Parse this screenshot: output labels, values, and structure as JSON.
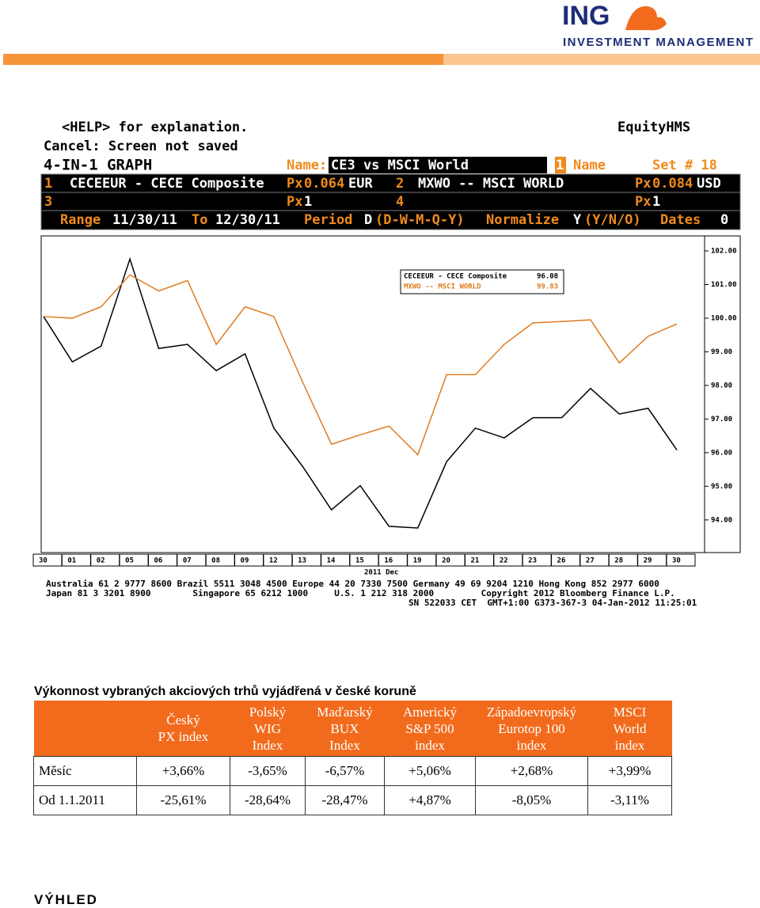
{
  "logo": {
    "name": "ING",
    "subtitle": "INVESTMENT MANAGEMENT"
  },
  "terminal": {
    "help": "<HELP> for explanation.",
    "product": "EquityHMS",
    "cancel": "Cancel: Screen not saved",
    "screen": "4-IN-1 GRAPH",
    "name_label": "Name:",
    "name_value": "CE3 vs MSCI World",
    "name_num": "1",
    "name_word": "Name",
    "set": "Set # 18",
    "row1": [
      "1",
      "CECEEUR - CECE Composite",
      "Px",
      "0.064",
      "EUR",
      "2",
      "MXWO -- MSCI WORLD",
      "Px",
      "0.084",
      "USD"
    ],
    "row2": [
      "3",
      "Px",
      "1",
      "4",
      "Px",
      "1"
    ],
    "row3": [
      "Range",
      "11/30/11",
      "To",
      "12/30/11",
      "Period",
      "D",
      "(D-W-M-Q-Y)",
      "Normalize",
      "Y",
      "(Y/N/O)",
      "Dates",
      "0"
    ],
    "footer": [
      "Australia 61 2 9777 8600 Brazil 5511 3048 4500 Europe 44 20 7330 7500 Germany 49 69 9204 1210 Hong Kong 852 2977 6000",
      "Japan 81 3 3201 8900        Singapore 65 6212 1000     U.S. 1 212 318 2000         Copyright 2012 Bloomberg Finance L.P.",
      "SN 522033 CET  GMT+1:00 G373-367-3 04-Jan-2012 11:25:01"
    ]
  },
  "chart_data": {
    "type": "line",
    "x_label": "2011 Dec",
    "categories": [
      "30",
      "01",
      "02",
      "05",
      "06",
      "07",
      "08",
      "09",
      "12",
      "13",
      "14",
      "15",
      "16",
      "19",
      "20",
      "21",
      "22",
      "23",
      "26",
      "27",
      "28",
      "29",
      "30"
    ],
    "series": [
      {
        "name": "CECEEUR - CECE Composite",
        "color": "#000000",
        "values": [
          100.05,
          98.7,
          99.17,
          101.76,
          99.1,
          99.22,
          98.44,
          98.94,
          96.73,
          95.59,
          94.3,
          95.02,
          93.81,
          93.76,
          95.73,
          96.73,
          96.44,
          97.04,
          97.04,
          97.91,
          97.15,
          97.32,
          96.08
        ]
      },
      {
        "name": "MXWO -- MSCI WORLD",
        "color": "#e07b20",
        "values": [
          100.05,
          100.0,
          100.34,
          101.29,
          100.81,
          101.12,
          99.22,
          100.34,
          100.05,
          98.1,
          96.25,
          96.53,
          96.79,
          95.94,
          98.32,
          98.32,
          99.22,
          99.86,
          99.9,
          99.95,
          98.67,
          99.46,
          99.83
        ]
      }
    ],
    "ylim": [
      93.1,
      102.4
    ],
    "yticks": [
      {
        "value": 94,
        "label": "94.00"
      },
      {
        "value": 95,
        "label": "95.00"
      },
      {
        "value": 96,
        "label": "96.00"
      },
      {
        "value": 97,
        "label": "97.00"
      },
      {
        "value": 98,
        "label": "98.00"
      },
      {
        "value": 99,
        "label": "99.00"
      },
      {
        "value": 100,
        "label": "100.00"
      },
      {
        "value": 101,
        "label": "101.00"
      },
      {
        "value": 102,
        "label": "102.00"
      }
    ],
    "grid": false
  },
  "table": {
    "title": "Výkonnost vybraných akciových trhů vyjádřená v české koruně",
    "header": [
      [],
      [
        "Český",
        "PX index"
      ],
      [
        "Polský",
        "WIG",
        "Index"
      ],
      [
        "Maďarský",
        "BUX",
        "Index"
      ],
      [
        "Americký",
        "S&P 500",
        "index"
      ],
      [
        "Západoevropský",
        "Eurotop 100",
        "index"
      ],
      [
        "MSCI",
        "World",
        "index"
      ]
    ],
    "rows": [
      [
        "Měsíc",
        "+3,66%",
        "-3,65%",
        "-6,57%",
        "+5,06%",
        "+2,68%",
        "+3,99%"
      ],
      [
        "Od 1.1.2011",
        "-25,61%",
        "-28,64%",
        "-28,47%",
        "+4,87%",
        "-8,05%",
        "-3,11%"
      ]
    ]
  },
  "section": "VÝHLED"
}
